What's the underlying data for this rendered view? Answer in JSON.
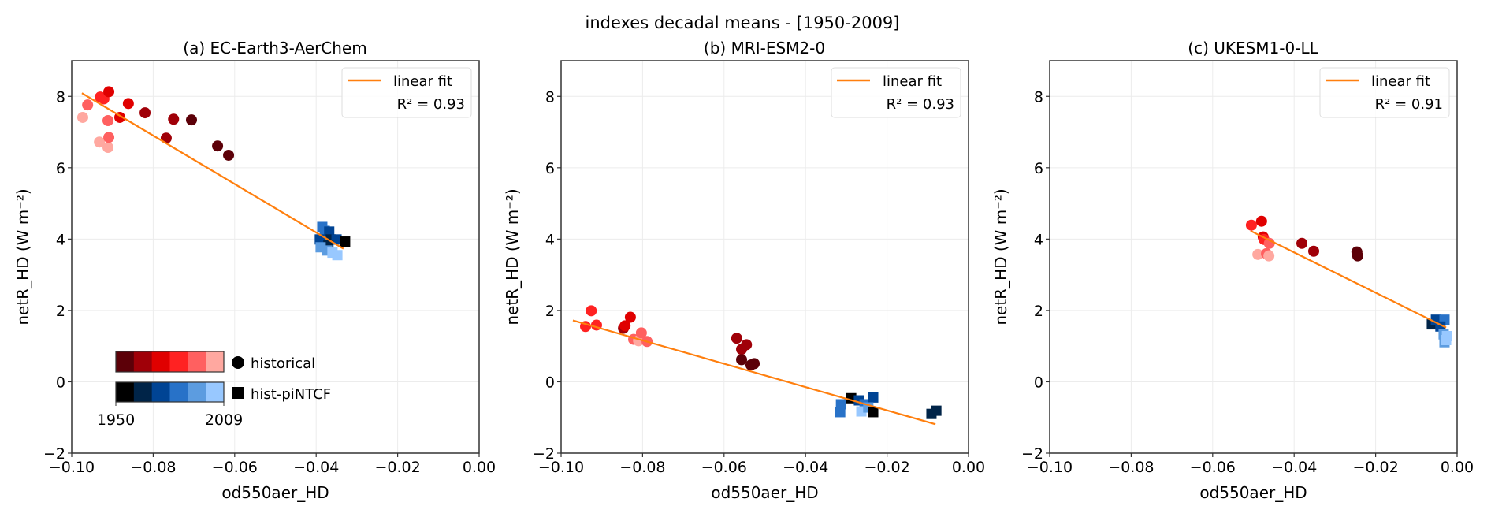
{
  "chart_data": {
    "type": "scatter",
    "title": "indexes decadal means - [1950-2009]",
    "years": [
      "1950",
      "2009"
    ],
    "historical_colors": [
      "#5c0008",
      "#a00008",
      "#e00000",
      "#ff2222",
      "#ff6060",
      "#ffa8a0"
    ],
    "hist_piNTCF_colors": [
      "#000000",
      "#002448",
      "#004494",
      "#2872c8",
      "#5c9ce0",
      "#98c8ff"
    ],
    "fit_color": "#ff7f0e",
    "legend": {
      "fit_label": "linear fit",
      "historical_label": "historical",
      "piNTCF_label": "hist-piNTCF",
      "placement": "top-right",
      "colorbar_placement": "bottom-left of panel (a)"
    },
    "panels": [
      {
        "title": "(a) EC-Earth3-AerChem",
        "xlabel": "od550aer_HD",
        "ylabel": "netR_HD (W m⁻²)",
        "xlim": [
          -0.1,
          0.0
        ],
        "ylim": [
          -2,
          9
        ],
        "xticks": [
          "−0.10",
          "−0.08",
          "−0.06",
          "−0.04",
          "−0.02",
          "0.00"
        ],
        "yticks": [
          "−2",
          "0",
          "2",
          "4",
          "6",
          "8"
        ],
        "grid": true,
        "r2_label": "R² = 0.93",
        "fit": [
          [
            -0.0975,
            8.09
          ],
          [
            -0.0333,
            3.73
          ]
        ],
        "historical": [
          [
            -0.0973,
            7.41,
            5
          ],
          [
            -0.0961,
            7.76,
            4
          ],
          [
            -0.0932,
            6.72,
            5
          ],
          [
            -0.0911,
            6.57,
            5
          ],
          [
            -0.0909,
            6.85,
            4
          ],
          [
            -0.0911,
            7.32,
            4
          ],
          [
            -0.093,
            7.98,
            3
          ],
          [
            -0.0921,
            7.93,
            3
          ],
          [
            -0.0909,
            8.13,
            2
          ],
          [
            -0.0882,
            7.41,
            2
          ],
          [
            -0.0861,
            7.8,
            2
          ],
          [
            -0.082,
            7.54,
            1
          ],
          [
            -0.075,
            7.36,
            1
          ],
          [
            -0.0768,
            6.83,
            1
          ],
          [
            -0.0706,
            7.34,
            0
          ],
          [
            -0.0642,
            6.61,
            0
          ],
          [
            -0.0615,
            6.35,
            0
          ]
        ],
        "piNTCF": [
          [
            -0.0385,
            4.34,
            3
          ],
          [
            -0.0379,
            4.23,
            3
          ],
          [
            -0.0368,
            4.21,
            2
          ],
          [
            -0.0391,
            3.99,
            2
          ],
          [
            -0.0364,
            3.99,
            1
          ],
          [
            -0.035,
            3.99,
            2
          ],
          [
            -0.0329,
            3.93,
            0
          ],
          [
            -0.037,
            3.84,
            1
          ],
          [
            -0.0389,
            3.77,
            4
          ],
          [
            -0.0373,
            3.68,
            4
          ],
          [
            -0.036,
            3.62,
            5
          ],
          [
            -0.0348,
            3.55,
            5
          ]
        ]
      },
      {
        "title": "(b) MRI-ESM2-0",
        "xlabel": "od550aer_HD",
        "ylabel": "netR_HD (W m⁻²)",
        "xlim": [
          -0.1,
          0.0
        ],
        "ylim": [
          -2,
          9
        ],
        "xticks": [
          "−0.10",
          "−0.08",
          "−0.06",
          "−0.04",
          "−0.02",
          "0.00"
        ],
        "yticks": [
          "−2",
          "0",
          "2",
          "4",
          "6",
          "8"
        ],
        "grid": true,
        "r2_label": "R² = 0.93",
        "fit": [
          [
            -0.0971,
            1.72
          ],
          [
            -0.0081,
            -1.19
          ]
        ],
        "historical": [
          [
            -0.094,
            1.55,
            3
          ],
          [
            -0.0926,
            1.99,
            3
          ],
          [
            -0.0913,
            1.59,
            3
          ],
          [
            -0.0847,
            1.5,
            1
          ],
          [
            -0.0843,
            1.57,
            2
          ],
          [
            -0.083,
            1.81,
            2
          ],
          [
            -0.0822,
            1.19,
            4
          ],
          [
            -0.081,
            1.15,
            5
          ],
          [
            -0.0803,
            1.37,
            4
          ],
          [
            -0.0789,
            1.13,
            4
          ],
          [
            -0.0569,
            1.22,
            1
          ],
          [
            -0.0557,
            0.91,
            1
          ],
          [
            -0.0545,
            1.04,
            1
          ],
          [
            -0.0557,
            0.62,
            0
          ],
          [
            -0.0534,
            0.47,
            0
          ],
          [
            -0.0526,
            0.51,
            0
          ]
        ],
        "piNTCF": [
          [
            -0.0313,
            -0.63,
            3
          ],
          [
            -0.0315,
            -0.85,
            3
          ],
          [
            -0.0288,
            -0.46,
            0
          ],
          [
            -0.0269,
            -0.52,
            2
          ],
          [
            -0.0255,
            -0.63,
            3
          ],
          [
            -0.0234,
            -0.44,
            2
          ],
          [
            -0.0263,
            -0.83,
            5
          ],
          [
            -0.0246,
            -0.72,
            4
          ],
          [
            -0.0234,
            -0.85,
            0
          ],
          [
            -0.0091,
            -0.9,
            1
          ],
          [
            -0.0079,
            -0.81,
            1
          ]
        ]
      },
      {
        "title": "(c) UKESM1-0-LL",
        "xlabel": "od550aer_HD",
        "ylabel": "netR_HD (W m⁻²)",
        "xlim": [
          -0.1,
          0.0
        ],
        "ylim": [
          -2,
          9
        ],
        "xticks": [
          "−0.10",
          "−0.08",
          "−0.06",
          "−0.04",
          "−0.02",
          "0.00"
        ],
        "yticks": [
          "−2",
          "0",
          "2",
          "4",
          "6",
          "8"
        ],
        "grid": true,
        "r2_label": "R² = 0.91",
        "fit": [
          [
            -0.0507,
            4.23
          ],
          [
            -0.0027,
            1.52
          ]
        ],
        "historical": [
          [
            -0.0505,
            4.39,
            3
          ],
          [
            -0.048,
            4.5,
            2
          ],
          [
            -0.0476,
            4.06,
            2
          ],
          [
            -0.0474,
            3.99,
            3
          ],
          [
            -0.0461,
            3.88,
            4
          ],
          [
            -0.0489,
            3.57,
            5
          ],
          [
            -0.0468,
            3.59,
            4
          ],
          [
            -0.0462,
            3.53,
            5
          ],
          [
            -0.0381,
            3.88,
            1
          ],
          [
            -0.0352,
            3.66,
            1
          ],
          [
            -0.0246,
            3.64,
            0
          ],
          [
            -0.0244,
            3.53,
            0
          ]
        ],
        "piNTCF": [
          [
            -0.0062,
            1.61,
            1
          ],
          [
            -0.0052,
            1.74,
            2
          ],
          [
            -0.0031,
            1.74,
            3
          ],
          [
            -0.0041,
            1.55,
            2
          ],
          [
            -0.0033,
            1.33,
            4
          ],
          [
            -0.0025,
            1.28,
            5
          ],
          [
            -0.0031,
            1.11,
            4
          ],
          [
            -0.0027,
            1.17,
            5
          ]
        ]
      }
    ]
  }
}
